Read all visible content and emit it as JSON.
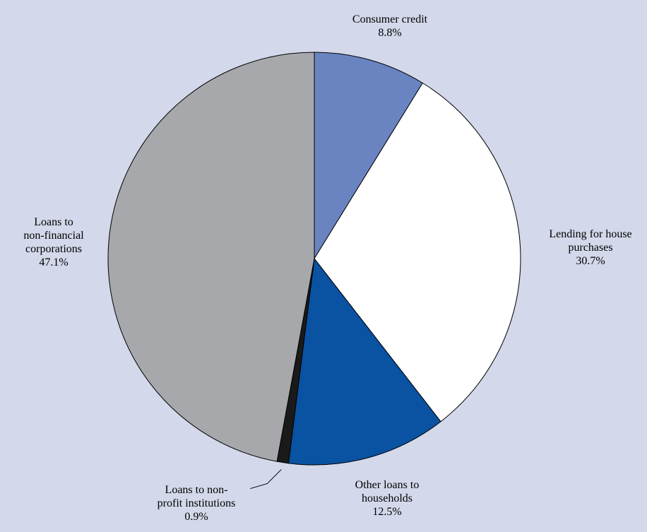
{
  "chart_data": {
    "type": "pie",
    "start_angle_deg": 0,
    "direction": "clockwise",
    "slices": [
      {
        "label": "Consumer credit",
        "label_lines": [
          "Consumer credit"
        ],
        "value": 8.8,
        "value_label": "8.8%",
        "color": "#6a84c2"
      },
      {
        "label": "Lending for house purchases",
        "label_lines": [
          "Lending for house",
          "purchases"
        ],
        "value": 30.7,
        "value_label": "30.7%",
        "color": "#ffffff"
      },
      {
        "label": "Other loans to households",
        "label_lines": [
          "Other loans to",
          "households"
        ],
        "value": 12.5,
        "value_label": "12.5%",
        "color": "#0a52a2"
      },
      {
        "label": "Loans to non-profit institutions",
        "label_lines": [
          "Loans to non-",
          "profit institutions"
        ],
        "value": 0.9,
        "value_label": "0.9%",
        "color": "#1a1a1a"
      },
      {
        "label": "Loans to non-financial corporations",
        "label_lines": [
          "Loans to",
          "non-financial",
          "corporations"
        ],
        "value": 47.1,
        "value_label": "47.1%",
        "color": "#a7a8ab"
      }
    ]
  }
}
